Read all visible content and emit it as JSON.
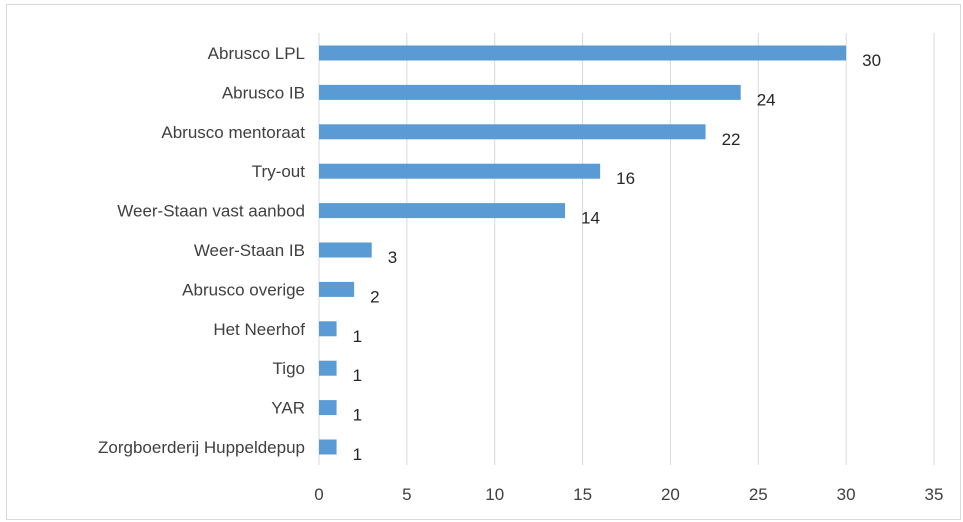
{
  "chart_data": {
    "type": "bar",
    "orientation": "horizontal",
    "title": "",
    "xlabel": "",
    "ylabel": "",
    "categories": [
      "Abrusco LPL",
      "Abrusco IB",
      "Abrusco mentoraat",
      "Try-out",
      "Weer-Staan vast aanbod",
      "Weer-Staan IB",
      "Abrusco overige",
      "Het Neerhof",
      "Tigo",
      "YAR",
      "Zorgboerderij Huppeldepup"
    ],
    "values": [
      30,
      24,
      22,
      16,
      14,
      3,
      2,
      1,
      1,
      1,
      1
    ],
    "xlim": [
      0,
      35
    ],
    "x_ticks": [
      0,
      5,
      10,
      15,
      20,
      25,
      30,
      35
    ],
    "grid": "vertical",
    "legend": "none",
    "data_labels": true,
    "bar_color": "#5b9bd5",
    "grid_color": "#d9d9d9"
  }
}
